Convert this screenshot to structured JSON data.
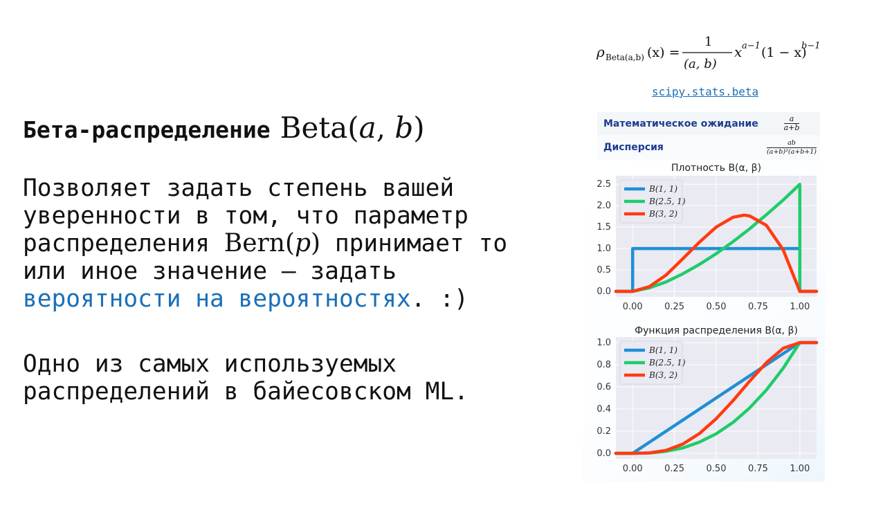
{
  "slide": {
    "title": "Бета-распределение",
    "title_math_name": "Beta(",
    "title_math_a": "a",
    "title_math_sep": ", ",
    "title_math_b": "b",
    "title_math_close": ")",
    "para1_before": "Позволяет задать степень вашей уверенности в том, что параметр распределения ",
    "para1_math": "Bern(",
    "para1_math_p": "p",
    "para1_math_close": ")",
    "para1_after": " принимает то или иное значение — задать ",
    "para1_link": "вероятности на вероятностях",
    "para1_end": ". :)",
    "para2": "Одно из самых используемых распределений в байесовском ML."
  },
  "formula": {
    "lhs_rho": "ρ",
    "lhs_sub": "Beta(a,b)",
    "lhs_arg": "(x) =",
    "num": "1",
    "den": "𝒝(a, b)",
    "rhs_x": "x",
    "rhs_exp1": "a−1",
    "rhs_mid": "(1 − x)",
    "rhs_exp2": "b−1"
  },
  "scipy_link": "scipy.stats.beta",
  "properties": [
    {
      "label": "Математическое ожидание",
      "num": "a",
      "den": "a+b"
    },
    {
      "label": "Дисперсия",
      "num": "ab",
      "den": "(a+b)²(a+b+1)"
    }
  ],
  "colors": {
    "text": "#111111",
    "link": "#1a6fb8",
    "series1": "#1f8fd6",
    "series2": "#1fcc6a",
    "series3": "#ff3b12",
    "plot_bg": "#eaeaf2"
  },
  "chart_data": [
    {
      "type": "line",
      "title": "Плотность B(α, β)",
      "xlabel": "",
      "ylabel": "",
      "xlim": [
        -0.1,
        1.1
      ],
      "ylim": [
        0,
        2.6
      ],
      "xticks": [
        "0.00",
        "0.25",
        "0.50",
        "0.75",
        "1.00"
      ],
      "yticks": [
        "0.0",
        "0.5",
        "1.0",
        "1.5",
        "2.0",
        "2.5"
      ],
      "legend_position": "top-left",
      "grid": true,
      "series": [
        {
          "name": "B(1, 1)",
          "x": [
            -0.1,
            0.0,
            0.0,
            1.0,
            1.0,
            1.1
          ],
          "y": [
            0,
            0,
            1,
            1,
            0,
            0
          ]
        },
        {
          "name": "B(2.5, 1)",
          "x": [
            -0.1,
            0.0,
            0.1,
            0.2,
            0.3,
            0.4,
            0.5,
            0.6,
            0.7,
            0.8,
            0.9,
            1.0,
            1.0,
            1.1
          ],
          "y": [
            0,
            0,
            0.08,
            0.22,
            0.41,
            0.63,
            0.88,
            1.16,
            1.46,
            1.79,
            2.13,
            2.5,
            0,
            0
          ]
        },
        {
          "name": "B(3, 2)",
          "x": [
            -0.1,
            0.0,
            0.1,
            0.2,
            0.3,
            0.4,
            0.5,
            0.6,
            0.667,
            0.7,
            0.8,
            0.9,
            1.0,
            1.1
          ],
          "y": [
            0,
            0,
            0.11,
            0.38,
            0.76,
            1.15,
            1.5,
            1.73,
            1.78,
            1.76,
            1.54,
            0.97,
            0,
            0
          ]
        }
      ]
    },
    {
      "type": "line",
      "title": "Функция распределения B(α, β)",
      "xlabel": "",
      "ylabel": "",
      "xlim": [
        -0.1,
        1.1
      ],
      "ylim": [
        0,
        1.0
      ],
      "xticks": [
        "0.00",
        "0.25",
        "0.50",
        "0.75",
        "1.00"
      ],
      "yticks": [
        "0.0",
        "0.2",
        "0.4",
        "0.6",
        "0.8",
        "1.0"
      ],
      "legend_position": "top-left",
      "grid": true,
      "series": [
        {
          "name": "B(1, 1)",
          "x": [
            -0.1,
            0.0,
            1.0,
            1.1
          ],
          "y": [
            0,
            0,
            1,
            1
          ]
        },
        {
          "name": "B(2.5, 1)",
          "x": [
            -0.1,
            0.0,
            0.1,
            0.2,
            0.3,
            0.4,
            0.5,
            0.6,
            0.7,
            0.8,
            0.9,
            1.0,
            1.1
          ],
          "y": [
            0,
            0,
            0.003,
            0.018,
            0.049,
            0.101,
            0.177,
            0.279,
            0.41,
            0.572,
            0.768,
            1.0,
            1.0
          ]
        },
        {
          "name": "B(3, 2)",
          "x": [
            -0.1,
            0.0,
            0.1,
            0.2,
            0.3,
            0.4,
            0.5,
            0.6,
            0.7,
            0.8,
            0.9,
            1.0,
            1.1
          ],
          "y": [
            0,
            0,
            0.004,
            0.027,
            0.084,
            0.179,
            0.313,
            0.475,
            0.652,
            0.819,
            0.948,
            1.0,
            1.0
          ]
        }
      ]
    }
  ]
}
